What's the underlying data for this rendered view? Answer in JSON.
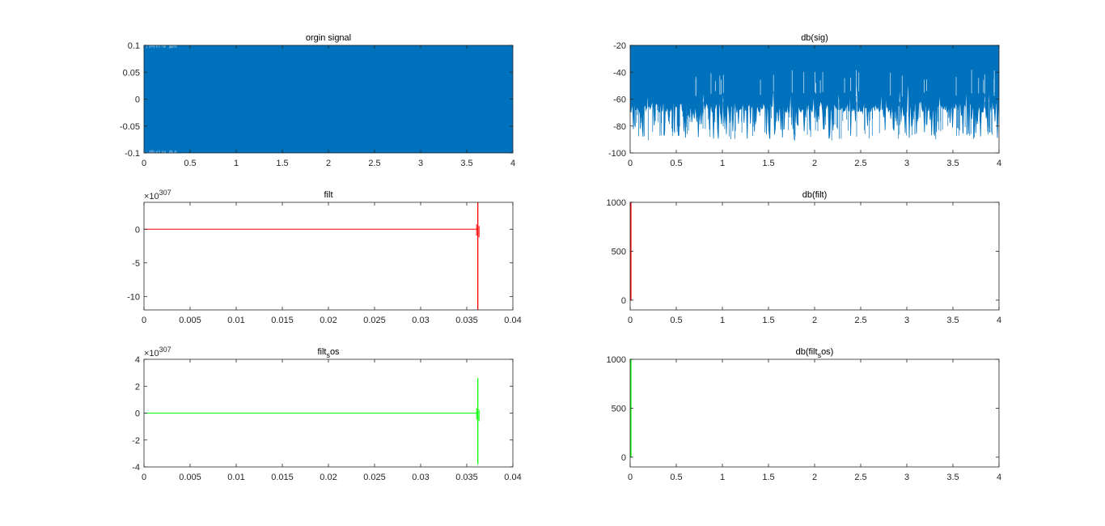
{
  "figure": {
    "background": "#ffffff",
    "axes_color": "#262626",
    "colors": {
      "blue": "#0072bd",
      "red": "#ff0000",
      "green": "#00ff00"
    }
  },
  "chart_data": [
    {
      "id": "orgin-signal",
      "type": "line",
      "title": "orgin signal",
      "xlabel": "",
      "ylabel": "",
      "xlim": [
        0,
        4
      ],
      "ylim": [
        -0.1,
        0.1
      ],
      "xticks": [
        0,
        0.5,
        1,
        1.5,
        2,
        2.5,
        3,
        3.5,
        4
      ],
      "xtick_labels": [
        "0",
        "0.5",
        "1",
        "1.5",
        "2",
        "2.5",
        "3",
        "3.5",
        "4"
      ],
      "yticks": [
        0.1,
        0.05,
        0,
        -0.05,
        -0.1
      ],
      "ytick_labels": [
        "0.1",
        "0.05",
        "0",
        "-0.05",
        "-0.1"
      ],
      "grid": false,
      "series": [
        {
          "color": "#0072bd",
          "style": "dense-noise",
          "x_range": [
            0,
            4
          ],
          "y_range": [
            -0.1,
            0.1
          ]
        }
      ]
    },
    {
      "id": "db-sig",
      "type": "line",
      "title": "db(sig)",
      "xlabel": "",
      "ylabel": "",
      "xlim": [
        0,
        4
      ],
      "ylim": [
        -100,
        -20
      ],
      "xticks": [
        0,
        0.5,
        1,
        1.5,
        2,
        2.5,
        3,
        3.5,
        4
      ],
      "xtick_labels": [
        "0",
        "0.5",
        "1",
        "1.5",
        "2",
        "2.5",
        "3",
        "3.5",
        "4"
      ],
      "yticks": [
        -20,
        -40,
        -60,
        -80,
        -100
      ],
      "ytick_labels": [
        "-20",
        "-40",
        "-60",
        "-80",
        "-100"
      ],
      "grid": false,
      "series": [
        {
          "color": "#0072bd",
          "style": "spectrum",
          "x_range": [
            0,
            4
          ],
          "y_top": -20,
          "y_floor_typical": -65,
          "y_min": -91
        }
      ]
    },
    {
      "id": "filt",
      "type": "line",
      "title": "filt",
      "exponent_label": "307",
      "xlabel": "",
      "ylabel": "",
      "xlim": [
        0,
        0.04
      ],
      "ylim": [
        -12,
        4
      ],
      "xticks": [
        0,
        0.005,
        0.01,
        0.015,
        0.02,
        0.025,
        0.03,
        0.035,
        0.04
      ],
      "xtick_labels": [
        "0",
        "0.005",
        "0.01",
        "0.015",
        "0.02",
        "0.025",
        "0.03",
        "0.035",
        "0.04"
      ],
      "yticks": [
        0,
        -5,
        -10
      ],
      "ytick_labels": [
        "0",
        "-5",
        "-10"
      ],
      "grid": false,
      "series": [
        {
          "color": "#ff0000",
          "style": "flat-then-blowup",
          "flat_until": 0.0362,
          "spike_x": 0.0362,
          "spike_min": -12,
          "spike_max": 4
        }
      ]
    },
    {
      "id": "db-filt",
      "type": "line",
      "title": "db(filt)",
      "xlabel": "",
      "ylabel": "",
      "xlim": [
        0,
        4
      ],
      "ylim": [
        -100,
        1000
      ],
      "xticks": [
        0,
        0.5,
        1,
        1.5,
        2,
        2.5,
        3,
        3.5,
        4
      ],
      "xtick_labels": [
        "0",
        "0.5",
        "1",
        "1.5",
        "2",
        "2.5",
        "3",
        "3.5",
        "4"
      ],
      "yticks": [
        1000,
        500,
        0
      ],
      "ytick_labels": [
        "1000",
        "500",
        "0"
      ],
      "grid": false,
      "series": [
        {
          "color": "#ff0000",
          "style": "edge-spike",
          "x": 0.0,
          "y_from": -5,
          "y_to": 1000
        }
      ]
    },
    {
      "id": "filt-sos",
      "type": "line",
      "title": "filt",
      "title_sub": "s",
      "title_after": "os",
      "exponent_label": "307",
      "xlabel": "",
      "ylabel": "",
      "xlim": [
        0,
        0.04
      ],
      "ylim": [
        -4,
        4
      ],
      "xticks": [
        0,
        0.005,
        0.01,
        0.015,
        0.02,
        0.025,
        0.03,
        0.035,
        0.04
      ],
      "xtick_labels": [
        "0",
        "0.005",
        "0.01",
        "0.015",
        "0.02",
        "0.025",
        "0.03",
        "0.035",
        "0.04"
      ],
      "yticks": [
        4,
        2,
        0,
        -2,
        -4
      ],
      "ytick_labels": [
        "4",
        "2",
        "0",
        "-2",
        "-4"
      ],
      "grid": false,
      "series": [
        {
          "color": "#00ff00",
          "style": "flat-then-blowup",
          "flat_until": 0.0362,
          "spike_x": 0.0362,
          "spike_min": -3.8,
          "spike_max": 2.6
        }
      ]
    },
    {
      "id": "db-filt-sos",
      "type": "line",
      "title": "db(filt",
      "title_sub": "s",
      "title_after": "os)",
      "xlabel": "",
      "ylabel": "",
      "xlim": [
        0,
        4
      ],
      "ylim": [
        -100,
        1000
      ],
      "xticks": [
        0,
        0.5,
        1,
        1.5,
        2,
        2.5,
        3,
        3.5,
        4
      ],
      "xtick_labels": [
        "0",
        "0.5",
        "1",
        "1.5",
        "2",
        "2.5",
        "3",
        "3.5",
        "4"
      ],
      "yticks": [
        1000,
        500,
        0
      ],
      "ytick_labels": [
        "1000",
        "500",
        "0"
      ],
      "grid": false,
      "series": [
        {
          "color": "#00ff00",
          "style": "edge-spike",
          "x": 0.0,
          "y_from": -5,
          "y_to": 1000
        }
      ]
    }
  ]
}
